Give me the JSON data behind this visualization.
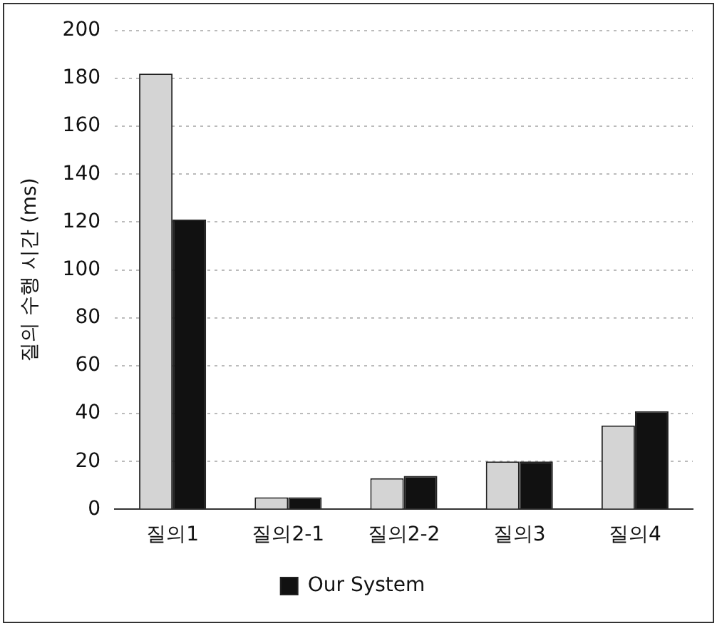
{
  "chart_data": {
    "type": "bar",
    "ylabel": "질의 수행 시간 (ms)",
    "categories": [
      "질의1",
      "질의2-1",
      "질의2-2",
      "질의3",
      "질의4"
    ],
    "series": [
      {
        "color": "#d4d4d4",
        "values": [
          182,
          5,
          13,
          20,
          35
        ]
      },
      {
        "name": "Our System",
        "color": "#111111",
        "values": [
          121,
          5,
          14,
          20,
          41
        ]
      }
    ],
    "ylim": [
      0,
      200
    ],
    "yticks": [
      0,
      20,
      40,
      60,
      80,
      100,
      120,
      140,
      160,
      180,
      200
    ],
    "grid": "y",
    "legend": "bottom"
  }
}
